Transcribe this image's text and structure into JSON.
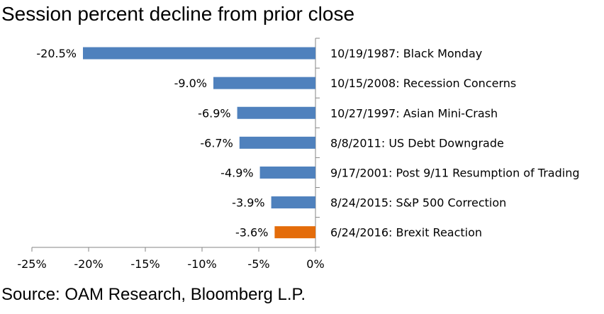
{
  "chart_data": {
    "type": "bar",
    "orientation": "horizontal",
    "title": "Session percent decline from prior close",
    "source": "Source:  OAM Research, Bloomberg L.P.",
    "categories": [
      "10/19/1987: Black Monday",
      "10/15/2008: Recession Concerns",
      "10/27/1997: Asian Mini-Crash",
      "8/8/2011: US Debt Downgrade",
      "9/17/2001: Post 9/11 Resumption of Trading",
      "8/24/2015: S&P 500 Correction",
      "6/24/2016: Brexit Reaction"
    ],
    "values": [
      -20.5,
      -9.0,
      -6.9,
      -6.7,
      -4.9,
      -3.9,
      -3.6
    ],
    "data_labels": [
      "-20.5%",
      "-9.0%",
      "-6.9%",
      "-6.7%",
      "-4.9%",
      "-3.9%",
      "-3.6%"
    ],
    "bar_colors": [
      "#4f81bd",
      "#4f81bd",
      "#4f81bd",
      "#4f81bd",
      "#4f81bd",
      "#4f81bd",
      "#e46c0a"
    ],
    "xlim": [
      -25,
      0
    ],
    "x_ticks": [
      -25,
      -20,
      -15,
      -10,
      -5,
      0
    ],
    "x_tick_labels": [
      "-25%",
      "-20%",
      "-15%",
      "-10%",
      "-5%",
      "0%"
    ],
    "xlabel": "",
    "ylabel": "",
    "grid": false,
    "legend": "none"
  }
}
